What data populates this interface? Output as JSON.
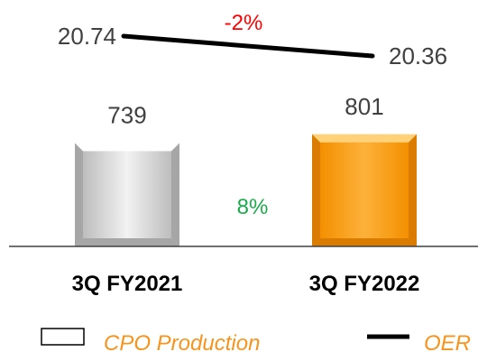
{
  "chart_data": {
    "type": "bar",
    "categories": [
      "3Q FY2021",
      "3Q FY2022"
    ],
    "series": [
      {
        "name": "CPO Production",
        "type": "bar",
        "values": [
          739,
          801
        ]
      },
      {
        "name": "OER",
        "type": "line",
        "values": [
          20.74,
          20.36
        ]
      }
    ],
    "bar_labels": [
      "739",
      "801"
    ],
    "line_labels": [
      "20.74",
      "20.36"
    ],
    "annotations": {
      "bar_change": "8%",
      "line_change": "-2%"
    },
    "legend": {
      "position": "bottom",
      "items": [
        "CPO Production",
        "OER"
      ]
    },
    "colors": {
      "bar_1": "#d9d9d9",
      "bar_2": "#f99b0c",
      "line": "#000000",
      "bar_change": "#1aab4b",
      "line_change": "#ff0000",
      "legend_text": "#f7941d",
      "label_text": "#404040"
    },
    "ylim": [
      0,
      1000
    ]
  }
}
